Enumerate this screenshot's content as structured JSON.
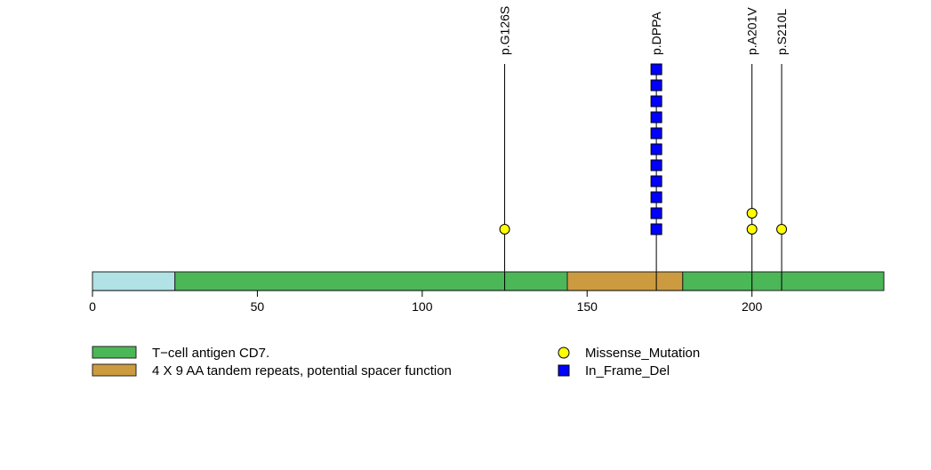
{
  "chart_data": {
    "type": "lollipop",
    "title": "",
    "xlabel": "",
    "ylabel": "",
    "xlim": [
      0,
      240
    ],
    "x_ticks": [
      0,
      50,
      100,
      150,
      200
    ],
    "protein_length": 240,
    "regions": [
      {
        "name": "",
        "start": 0,
        "end": 25,
        "color": "#b0e2e6"
      },
      {
        "name": "T-cell antigen CD7.",
        "start": 25,
        "end": 144,
        "color": "#4bb757"
      },
      {
        "name": "4 X 9 AA tandem repeats, potential spacer function",
        "start": 144,
        "end": 179,
        "color": "#cc9b3f"
      },
      {
        "name": "T-cell antigen CD7.",
        "start": 179,
        "end": 240,
        "color": "#4bb757"
      }
    ],
    "mutations": [
      {
        "label": "p.G126S",
        "position": 125,
        "type": "Missense_Mutation",
        "count": 1
      },
      {
        "label": "p.DPPA",
        "position": 171,
        "type": "In_Frame_Del",
        "count": 11
      },
      {
        "label": "p.A201V",
        "position": 200,
        "type": "Missense_Mutation",
        "count": 2
      },
      {
        "label": "p.S210L",
        "position": 209,
        "type": "Missense_Mutation",
        "count": 1
      }
    ],
    "legend": {
      "placement": "bottom",
      "domains": [
        {
          "label": "T−cell antigen CD7.",
          "color": "#4bb757"
        },
        {
          "label": "4 X 9 AA tandem repeats, potential spacer function",
          "color": "#cc9b3f"
        }
      ],
      "mutation_types": [
        {
          "label": "Missense_Mutation",
          "shape": "circle",
          "color": "#ffff00"
        },
        {
          "label": "In_Frame_Del",
          "shape": "square",
          "color": "#0000ff"
        }
      ]
    }
  }
}
